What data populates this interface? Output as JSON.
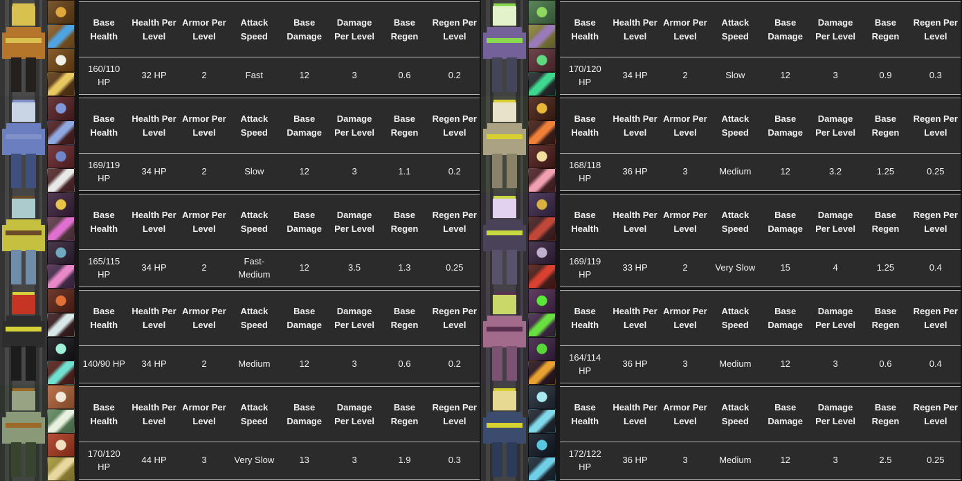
{
  "colors": {
    "page_bg": "#161616",
    "table_bg": "#2b2b2b",
    "divider": "#b8b8b8",
    "text": "#f0f0f0"
  },
  "table_headers": [
    "Base Health",
    "Health Per Level",
    "Armor Per Level",
    "Attack Speed",
    "Base Damage",
    "Damage Per Level",
    "Base Regen",
    "Regen Per Level"
  ],
  "characters": [
    {
      "stats": [
        "160/110 HP",
        "32 HP",
        "2",
        "Fast",
        "12",
        "3",
        "0.6",
        "0.2"
      ],
      "sprite": {
        "bg1": "#4a4a4a",
        "bg2": "#353535",
        "head": "#d9c14f",
        "body": "#b5762c",
        "legs": "#23201d",
        "accent": "#d9c14f"
      },
      "abilities": [
        [
          "#6b4418",
          "#e0a73c"
        ],
        [
          "#8a5a20",
          "#4fa3e0"
        ],
        [
          "#7a4a16",
          "#f0f0e8"
        ],
        [
          "#5f3a14",
          "#e8c860"
        ]
      ]
    },
    {
      "stats": [
        "169/119 HP",
        "34 HP",
        "2",
        "Slow",
        "12",
        "3",
        "1.1",
        "0.2"
      ],
      "sprite": {
        "bg1": "#454545",
        "bg2": "#323232",
        "head": "#c9d4e4",
        "body": "#6b7fc0",
        "legs": "#3f4f7e",
        "accent": "#8090c8"
      },
      "abilities": [
        [
          "#5a2326",
          "#7f96d8"
        ],
        [
          "#4f1f22",
          "#8fa8e0"
        ],
        [
          "#6a282c",
          "#6f86c8"
        ],
        [
          "#55282c",
          "#e8e8e8"
        ]
      ]
    },
    {
      "stats": [
        "165/115 HP",
        "34 HP",
        "2",
        "Fast-Medium",
        "12",
        "3.5",
        "1.3",
        "0.25"
      ],
      "sprite": {
        "bg1": "#464646",
        "bg2": "#343434",
        "head": "#aacccc",
        "body": "#c6c040",
        "legs": "#6f8ca8",
        "accent": "#6a4a28"
      },
      "abilities": [
        [
          "#3f2440",
          "#e8c447"
        ],
        [
          "#5f3a48",
          "#e070d0"
        ],
        [
          "#342438",
          "#70a8c0"
        ],
        [
          "#4a2c50",
          "#e888c8"
        ]
      ]
    },
    {
      "stats": [
        "140/90 HP",
        "34 HP",
        "2",
        "Medium",
        "12",
        "3",
        "0.6",
        "0.2"
      ],
      "sprite": {
        "bg1": "#484848",
        "bg2": "#343434",
        "head": "#c63524",
        "body": "#2d2d2d",
        "legs": "#1c1c1c",
        "accent": "#d6d23a"
      },
      "abilities": [
        [
          "#5f2518",
          "#e07038"
        ],
        [
          "#3a1d1f",
          "#d8e8e8"
        ],
        [
          "#17171c",
          "#9ff0d8"
        ],
        [
          "#58201c",
          "#70e0d0"
        ]
      ]
    },
    {
      "stats": [
        "170/120 HP",
        "44 HP",
        "3",
        "Very Slow",
        "13",
        "3",
        "1.9",
        "0.3"
      ],
      "sprite": {
        "bg1": "#414641",
        "bg2": "#303430",
        "head": "#97a383",
        "body": "#8a9a78",
        "legs": "#39442f",
        "accent": "#9c6a26"
      },
      "abilities": [
        [
          "#b5653a",
          "#f0e8d8"
        ],
        [
          "#5f8a5f",
          "#e8f0e0"
        ],
        [
          "#b03c20",
          "#f0e0c0"
        ],
        [
          "#a89838",
          "#e8d8a0"
        ]
      ]
    },
    {
      "stats": [
        "170/120 HP",
        "34 HP",
        "2",
        "Slow",
        "12",
        "3",
        "0.9",
        "0.3"
      ],
      "sprite": {
        "bg1": "#424242",
        "bg2": "#2f2f2f",
        "head": "#e4f2cc",
        "body": "#75619a",
        "legs": "#45455a",
        "accent": "#8ad850"
      },
      "abilities": [
        [
          "#49784a",
          "#8fd860"
        ],
        [
          "#8a823a",
          "#9a7ab8"
        ],
        [
          "#5f3038",
          "#60d880"
        ],
        [
          "#23292b",
          "#3fd890"
        ]
      ]
    },
    {
      "stats": [
        "168/118 HP",
        "36 HP",
        "3",
        "Medium",
        "12",
        "3.2",
        "1.25",
        "0.25"
      ],
      "sprite": {
        "bg1": "#45483f",
        "bg2": "#32342e",
        "head": "#e9e2ca",
        "body": "#aaa282",
        "legs": "#8a8268",
        "accent": "#d8d030"
      },
      "abilities": [
        [
          "#4a2318",
          "#e8b838"
        ],
        [
          "#421d16",
          "#f08038"
        ],
        [
          "#531f1d",
          "#f0e0a0"
        ],
        [
          "#4f2328",
          "#f0a0b0"
        ]
      ]
    },
    {
      "stats": [
        "169/119 HP",
        "33 HP",
        "2",
        "Very Slow",
        "15",
        "4",
        "1.25",
        "0.4"
      ],
      "sprite": {
        "bg1": "#454348",
        "bg2": "#323034",
        "head": "#e2d2f0",
        "body": "#4a4258",
        "legs": "#59526b",
        "accent": "#c8d840"
      },
      "abilities": [
        [
          "#3f2a4f",
          "#d8b040"
        ],
        [
          "#451f22",
          "#c04838"
        ],
        [
          "#382440",
          "#c0b0d0"
        ],
        [
          "#4f1d18",
          "#d84030"
        ]
      ]
    },
    {
      "stats": [
        "164/114 HP",
        "36 HP",
        "3",
        "Medium",
        "12",
        "3",
        "0.6",
        "0.4"
      ],
      "sprite": {
        "bg1": "#44404a",
        "bg2": "#312e36",
        "head": "#c9d868",
        "body": "#a26a8b",
        "legs": "#7c5273",
        "accent": "#5a3050"
      },
      "abilities": [
        [
          "#4f2a52",
          "#58e838"
        ],
        [
          "#43274a",
          "#68e040"
        ],
        [
          "#3f2347",
          "#58d838"
        ],
        [
          "#2a1420",
          "#e8a030"
        ]
      ]
    },
    {
      "stats": [
        "172/122 HP",
        "36 HP",
        "3",
        "Medium",
        "12",
        "3",
        "2.5",
        "0.25"
      ],
      "sprite": {
        "bg1": "#434343",
        "bg2": "#303030",
        "head": "#e7d892",
        "body": "#3c4c6e",
        "legs": "#2b3b58",
        "accent": "#d8d030"
      },
      "abilities": [
        [
          "#232d3a",
          "#a8e8f0"
        ],
        [
          "#1d2530",
          "#80d8e8"
        ],
        [
          "#141c28",
          "#58c8e0"
        ],
        [
          "#1a2836",
          "#70d0e8"
        ]
      ]
    }
  ]
}
